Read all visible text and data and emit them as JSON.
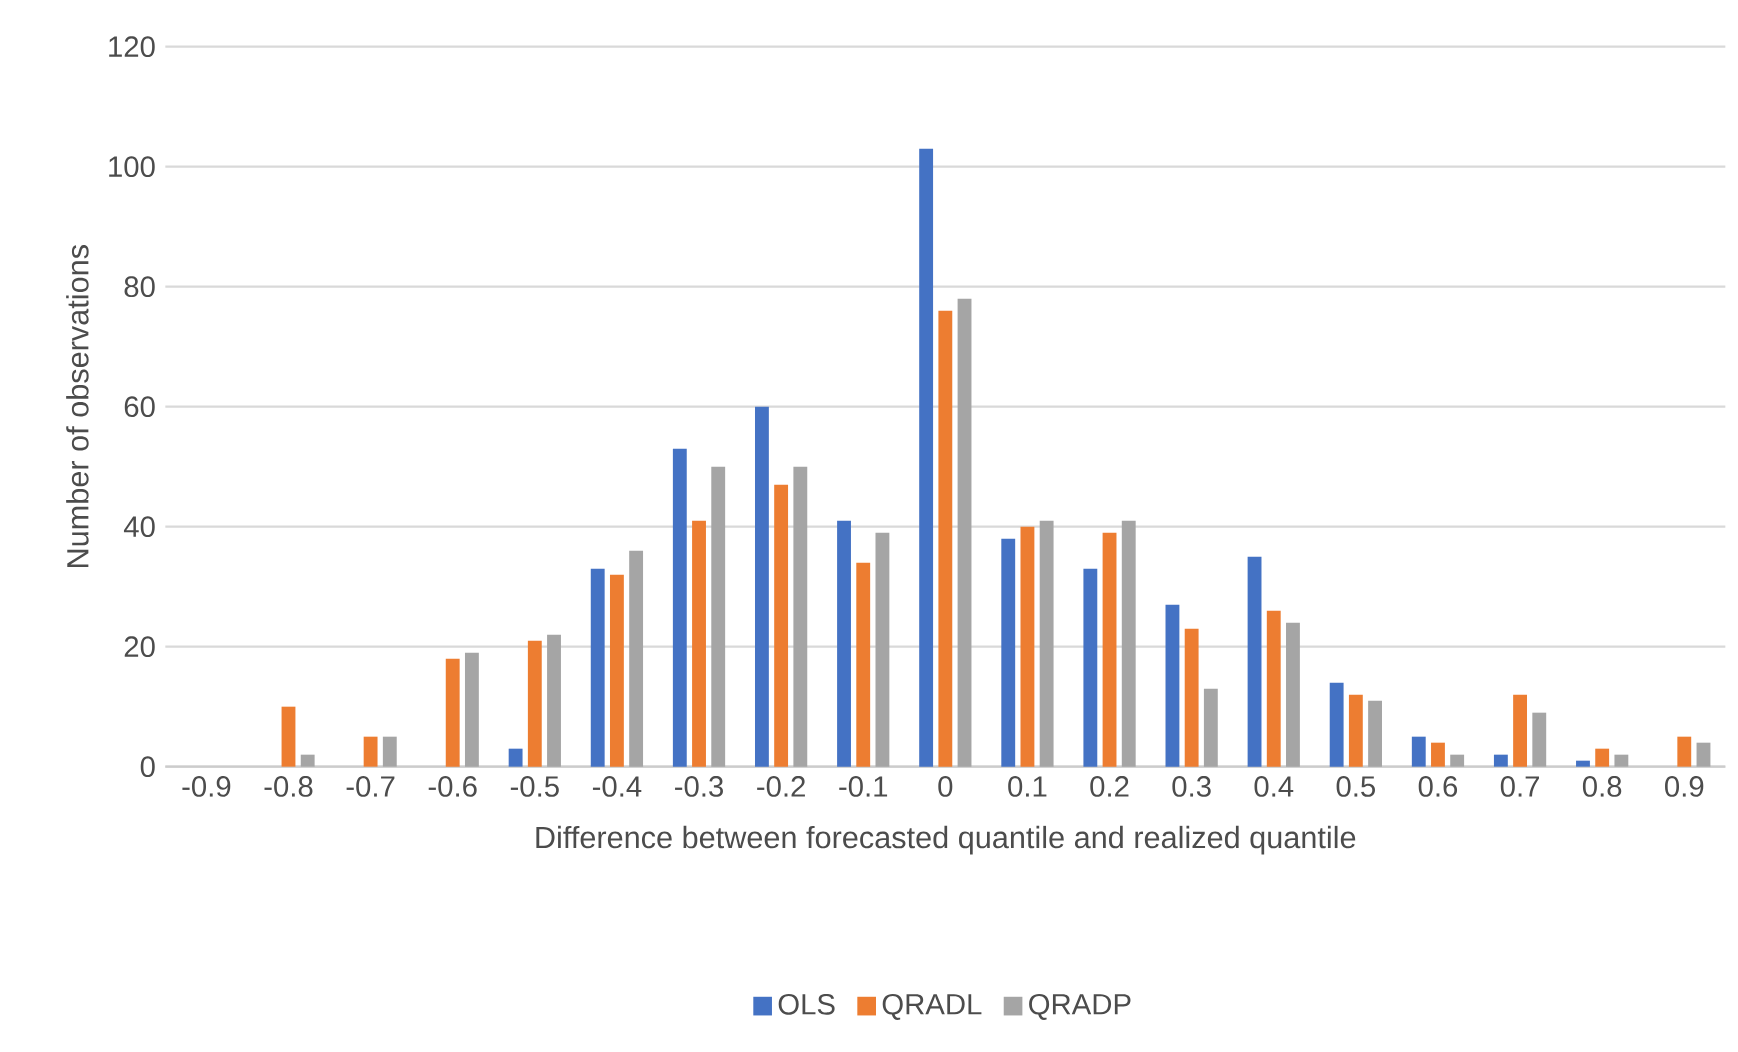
{
  "chart_data": {
    "type": "bar",
    "xlabel": "Difference between forecasted quantile and realized quantile",
    "ylabel": "Number of observations",
    "categories": [
      "-0.9",
      "-0.8",
      "-0.7",
      "-0.6",
      "-0.5",
      "-0.4",
      "-0.3",
      "-0.2",
      "-0.1",
      "0",
      "0.1",
      "0.2",
      "0.3",
      "0.4",
      "0.5",
      "0.6",
      "0.7",
      "0.8",
      "0.9"
    ],
    "series": [
      {
        "name": "OLS",
        "color": "#4472c4",
        "values": [
          0,
          0,
          0,
          0,
          3,
          33,
          53,
          60,
          41,
          103,
          38,
          33,
          27,
          35,
          14,
          5,
          2,
          1,
          0
        ]
      },
      {
        "name": "QRADL",
        "color": "#ed7d31",
        "values": [
          0,
          10,
          5,
          18,
          21,
          32,
          41,
          47,
          34,
          76,
          40,
          39,
          23,
          26,
          12,
          4,
          12,
          3,
          5
        ]
      },
      {
        "name": "QRADP",
        "color": "#a5a5a5",
        "values": [
          0,
          2,
          5,
          19,
          22,
          36,
          50,
          50,
          39,
          78,
          41,
          41,
          13,
          24,
          11,
          2,
          9,
          2,
          4
        ]
      }
    ],
    "ylim": [
      0,
      120
    ],
    "yticks": [
      0,
      20,
      40,
      60,
      80,
      100,
      120
    ],
    "grid": "y",
    "legend": "bottom"
  }
}
